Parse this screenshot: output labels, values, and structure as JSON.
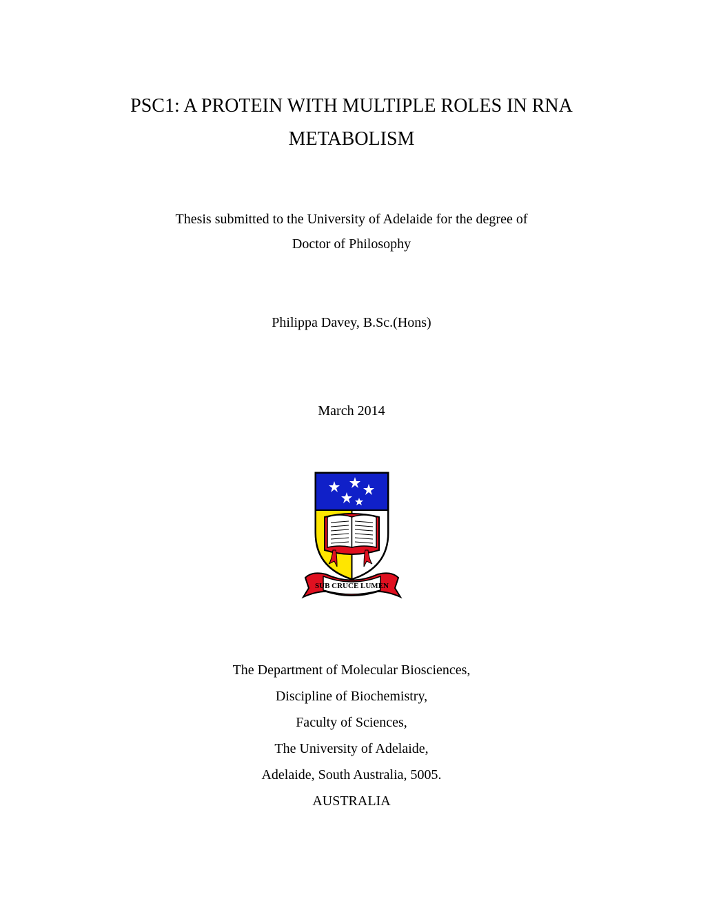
{
  "title": {
    "line1": "PSC1: A PROTEIN WITH MULTIPLE ROLES IN RNA",
    "line2": "METABOLISM",
    "fontsize": 28
  },
  "subtitle": {
    "line1": "Thesis submitted to the University of Adelaide for the degree of",
    "line2": "Doctor of Philosophy",
    "fontsize": 20
  },
  "author": {
    "text": "Philippa Davey, B.Sc.(Hons)",
    "fontsize": 20
  },
  "date": {
    "text": "March 2014",
    "fontsize": 20
  },
  "crest": {
    "width": 175,
    "height": 195,
    "shield_border": "#000000",
    "top_field_color": "#1020c8",
    "left_field_color": "#ffe600",
    "right_field_color": "#ffffff",
    "star_color": "#ffffff",
    "book_pages": "#ffffff",
    "book_cover": "#e01020",
    "book_lines": "#000000",
    "ribbon_color": "#e01020",
    "ribbon_text_color": "#000000",
    "ribbon_text": "SUB CRUCE LUMEN"
  },
  "affiliation": {
    "lines": [
      "The Department of Molecular Biosciences,",
      "Discipline of Biochemistry,",
      "Faculty of Sciences,",
      "The University of Adelaide,",
      "Adelaide, South Australia, 5005.",
      "AUSTRALIA"
    ],
    "fontsize": 20
  },
  "page": {
    "background_color": "#ffffff",
    "text_color": "#000000",
    "font_family": "Times New Roman"
  }
}
